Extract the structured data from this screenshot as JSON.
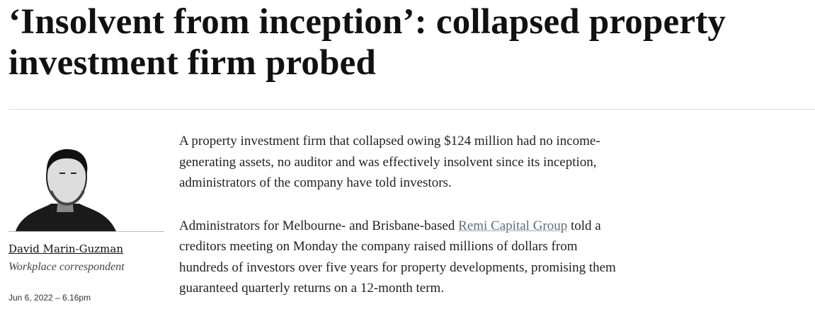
{
  "article": {
    "headline": "‘Insolvent from inception’: collapsed property investment firm probed",
    "author": {
      "name": "David Marin-Guzman",
      "role": "Workplace correspondent"
    },
    "date": "Jun 6, 2022 – 6.16pm",
    "paragraphs": [
      {
        "parts": [
          "A property investment firm that collapsed owing $124 million had no income-generating assets, no auditor and was effectively insolvent since its inception, administrators of the company have told investors."
        ]
      },
      {
        "parts": [
          "Administrators for Melbourne- and Brisbane-based ",
          "Remi Capital Group",
          " told a creditors meeting on Monday the company raised millions of dollars from hundreds of investors over five years for property developments, promising them guaranteed quarterly returns on a 12-month term."
        ]
      }
    ]
  }
}
